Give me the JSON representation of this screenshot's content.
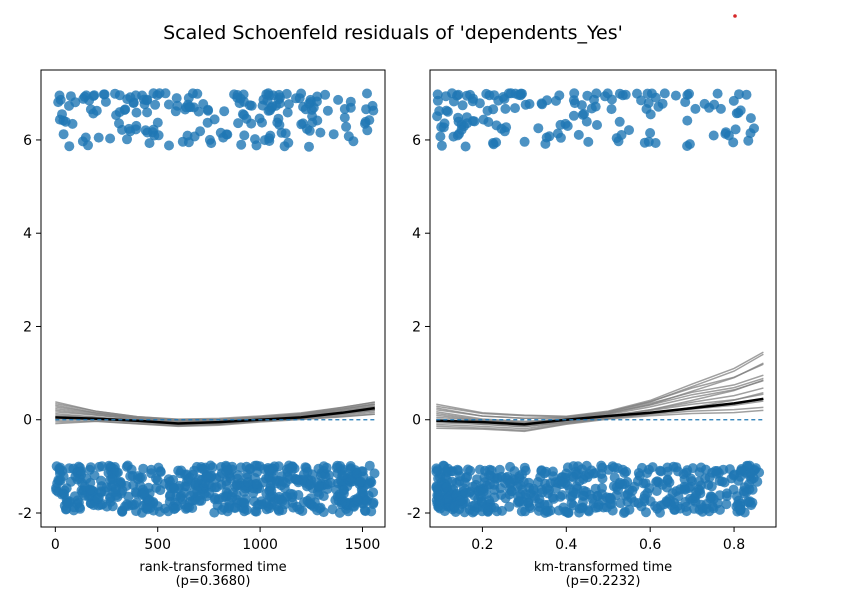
{
  "figure": {
    "title": "Scaled Schoenfeld residuals of 'dependents_Yes'"
  },
  "colors": {
    "points": "#1f77b4",
    "smooth_mean": "#000000",
    "bootstrap_curves": "#808080",
    "zero_line": "#1f77b4",
    "marker_dot": "#d62728"
  },
  "chart_data": [
    {
      "type": "scatter",
      "xlabel": "rank-transformed time",
      "xlabel_sub": "(p=0.3680)",
      "xlim": [
        -70,
        1610
      ],
      "ylim": [
        -2.3,
        7.5
      ],
      "xticks": [
        0,
        500,
        1000,
        1500
      ],
      "xtick_labels": [
        "0",
        "500",
        "1000",
        "1500"
      ],
      "yticks": [
        -2,
        0,
        2,
        4,
        6
      ],
      "ytick_labels": [
        "-2",
        "0",
        "2",
        "4",
        "6"
      ],
      "grid": false,
      "legend": "none",
      "point_clusters": [
        {
          "group": "upper",
          "x_range": [
            0,
            1560
          ],
          "y_range": [
            5.85,
            7.0
          ],
          "count": 190
        },
        {
          "group": "lower",
          "x_range": [
            0,
            1560
          ],
          "y_range": [
            -2.0,
            -0.8
          ],
          "count": 560
        }
      ],
      "mean_smoother": {
        "x": [
          0,
          200,
          400,
          600,
          800,
          1000,
          1200,
          1400,
          1560
        ],
        "y": [
          0.05,
          0.02,
          -0.02,
          -0.08,
          -0.05,
          0.0,
          0.05,
          0.15,
          0.25
        ]
      },
      "bootstrap_smoothers": {
        "count": 14,
        "x": [
          0,
          200,
          400,
          600,
          800,
          1000,
          1200,
          1400,
          1560
        ],
        "y_envelope_low": [
          -0.1,
          -0.05,
          -0.1,
          -0.15,
          -0.12,
          -0.05,
          0.0,
          0.05,
          0.1
        ],
        "y_envelope_high": [
          0.4,
          0.2,
          0.08,
          0.02,
          0.03,
          0.08,
          0.15,
          0.28,
          0.4
        ]
      },
      "reference_line_y": 0
    },
    {
      "type": "scatter",
      "xlabel": "km-transformed time",
      "xlabel_sub": "(p=0.2232)",
      "xlim": [
        0.075,
        0.9
      ],
      "ylim": [
        -2.3,
        7.5
      ],
      "xticks": [
        0.2,
        0.4,
        0.6,
        0.8
      ],
      "xtick_labels": [
        "0.2",
        "0.4",
        "0.6",
        "0.8"
      ],
      "yticks": [
        -2,
        0,
        2,
        4,
        6
      ],
      "ytick_labels": [
        "-2",
        "0",
        "2",
        "4",
        "6"
      ],
      "grid": false,
      "legend": "none",
      "point_clusters": [
        {
          "group": "upper",
          "x_range": [
            0.09,
            0.87
          ],
          "y_range": [
            5.85,
            7.0
          ],
          "count": 150
        },
        {
          "group": "lower",
          "x_range": [
            0.09,
            0.86
          ],
          "y_range": [
            -2.0,
            -0.8
          ],
          "count": 500
        }
      ],
      "mean_smoother": {
        "x": [
          0.09,
          0.2,
          0.3,
          0.4,
          0.5,
          0.6,
          0.7,
          0.8,
          0.87
        ],
        "y": [
          -0.02,
          -0.05,
          -0.1,
          0.0,
          0.08,
          0.15,
          0.25,
          0.35,
          0.45
        ]
      },
      "bootstrap_smoothers": {
        "count": 14,
        "x": [
          0.09,
          0.2,
          0.3,
          0.4,
          0.5,
          0.6,
          0.7,
          0.8,
          0.87
        ],
        "y_envelope_low": [
          -0.2,
          -0.2,
          -0.25,
          -0.1,
          0.0,
          0.05,
          0.1,
          0.15,
          0.2
        ],
        "y_envelope_high": [
          0.35,
          0.15,
          0.1,
          0.08,
          0.2,
          0.45,
          0.8,
          1.1,
          1.45
        ]
      },
      "reference_line_y": 0
    }
  ]
}
